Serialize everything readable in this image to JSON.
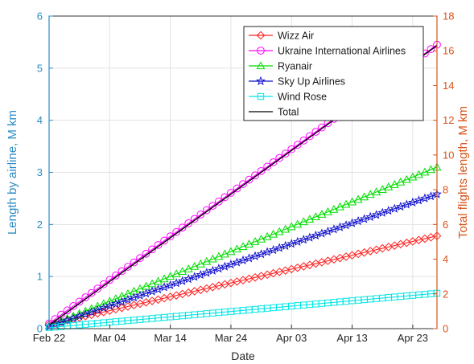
{
  "chart_data": {
    "type": "line",
    "xlabel": "Date",
    "ylabel_left": "Length by airline, M km",
    "ylabel_right": "Total flights length, M km",
    "x_range": [
      "2022-02-22",
      "2022-04-27"
    ],
    "x_ticks": [
      {
        "date": "2022-02-22",
        "label": "Feb 22"
      },
      {
        "date": "2022-03-04",
        "label": "Mar 04"
      },
      {
        "date": "2022-03-14",
        "label": "Mar 14"
      },
      {
        "date": "2022-03-24",
        "label": "Mar 24"
      },
      {
        "date": "2022-04-03",
        "label": "Apr 03"
      },
      {
        "date": "2022-04-13",
        "label": "Apr 13"
      },
      {
        "date": "2022-04-23",
        "label": "Apr 23"
      }
    ],
    "ylim_left": [
      0,
      6
    ],
    "yticks_left": [
      "0",
      "1",
      "2",
      "3",
      "4",
      "5",
      "6"
    ],
    "ylim_right": [
      0,
      18
    ],
    "yticks_right": [
      "0",
      "2",
      "4",
      "6",
      "8",
      "10",
      "12",
      "14",
      "16",
      "18"
    ],
    "grid": true,
    "legend_position": "top-right",
    "left_axis_color": "#2b8cc4",
    "right_axis_color": "#d95319",
    "series": [
      {
        "name": "Wizz Air",
        "axis": "left",
        "color": "#ff2020",
        "marker": "diamond",
        "x": [
          "2022-02-22",
          "2022-04-27"
        ],
        "y": [
          0.08,
          1.78
        ]
      },
      {
        "name": "Ukraine International Airlines",
        "axis": "left",
        "color": "#ff00ff",
        "marker": "circle",
        "x": [
          "2022-02-22",
          "2022-04-27"
        ],
        "y": [
          0.1,
          5.45
        ]
      },
      {
        "name": "Ryanair",
        "axis": "left",
        "color": "#00dd00",
        "marker": "triangle",
        "x": [
          "2022-02-22",
          "2022-04-27"
        ],
        "y": [
          0.05,
          3.1
        ]
      },
      {
        "name": "Sky Up Airlines",
        "axis": "left",
        "color": "#1010cc",
        "marker": "star",
        "x": [
          "2022-02-22",
          "2022-04-27"
        ],
        "y": [
          0.04,
          2.58
        ]
      },
      {
        "name": "Wind Rose",
        "axis": "left",
        "color": "#00e5e5",
        "marker": "square",
        "x": [
          "2022-02-22",
          "2022-04-27"
        ],
        "y": [
          0.02,
          0.68
        ]
      },
      {
        "name": "Total",
        "axis": "right",
        "color": "#000000",
        "marker": "none",
        "x": [
          "2022-02-22",
          "2022-04-27"
        ],
        "y": [
          0.2,
          16.3
        ]
      }
    ]
  }
}
